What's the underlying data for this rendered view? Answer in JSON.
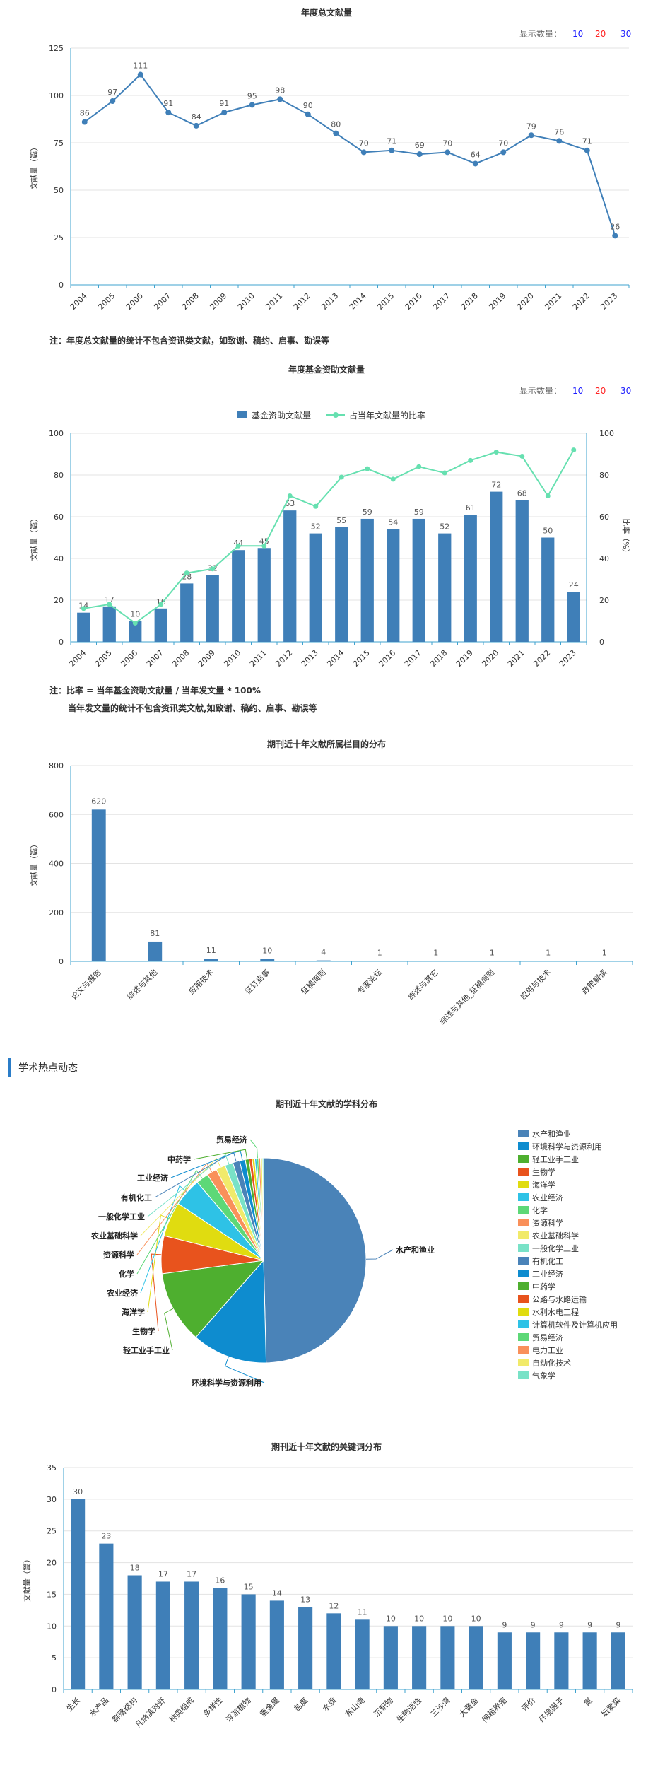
{
  "chart_data": [
    {
      "type": "line",
      "title": "年度总文献量",
      "display_count": {
        "label": "显示数量：",
        "options": [
          "10",
          "20",
          "30"
        ]
      },
      "ylabel": "文献量（篇）",
      "ylim": [
        0,
        125
      ],
      "yticks": [
        0,
        25,
        50,
        75,
        100,
        125
      ],
      "categories": [
        "2004",
        "2005",
        "2006",
        "2007",
        "2008",
        "2009",
        "2010",
        "2011",
        "2012",
        "2013",
        "2014",
        "2015",
        "2016",
        "2017",
        "2018",
        "2019",
        "2020",
        "2021",
        "2022",
        "2023"
      ],
      "values": [
        86,
        97,
        111,
        91,
        84,
        91,
        95,
        98,
        90,
        80,
        70,
        71,
        69,
        70,
        64,
        70,
        79,
        76,
        71,
        26
      ],
      "note": "注：年度总文献量的统计不包含资讯类文献，如致谢、稿约、启事、勘误等",
      "color": "#3f7fb8"
    },
    {
      "type": "bar",
      "title": "年度基金资助文献量",
      "display_count": {
        "label": "显示数量：",
        "options": [
          "10",
          "20",
          "30"
        ]
      },
      "ylabel": "文献量（篇）",
      "y2label": "比率（%）",
      "ylim": [
        0,
        100
      ],
      "yticks": [
        0,
        20,
        40,
        60,
        80,
        100
      ],
      "y2ticks": [
        0,
        20,
        40,
        60,
        80,
        100
      ],
      "legend": [
        "基金资助文献量",
        "占当年文献量的比率"
      ],
      "categories": [
        "2004",
        "2005",
        "2006",
        "2007",
        "2008",
        "2009",
        "2010",
        "2011",
        "2012",
        "2013",
        "2014",
        "2015",
        "2016",
        "2017",
        "2018",
        "2019",
        "2020",
        "2021",
        "2022",
        "2023"
      ],
      "series": [
        {
          "name": "基金资助文献量",
          "type": "bar",
          "values": [
            14,
            17,
            10,
            16,
            28,
            32,
            44,
            45,
            63,
            52,
            55,
            59,
            54,
            59,
            52,
            61,
            72,
            68,
            50,
            24
          ]
        },
        {
          "name": "占当年文献量的比率",
          "type": "line",
          "values": [
            16,
            18,
            9,
            18,
            33,
            35,
            46,
            46,
            70,
            65,
            79,
            83,
            78,
            84,
            81,
            87,
            91,
            89,
            70,
            92
          ]
        }
      ],
      "note_lines": [
        "注：比率 = 当年基金资助文献量 / 当年发文量 * 100%",
        "当年发文量的统计不包含资讯类文献,如致谢、稿约、启事、勘误等"
      ],
      "colors": {
        "bar": "#3f7fb8",
        "line": "#66e0b0"
      }
    },
    {
      "type": "bar",
      "title": "期刊近十年文献所属栏目的分布",
      "ylabel": "文献量（篇）",
      "ylim": [
        0,
        800
      ],
      "yticks": [
        0,
        200,
        400,
        600,
        800
      ],
      "categories": [
        "论文与报告",
        "综述与其他",
        "应用技术",
        "征订启事",
        "征稿简则",
        "专家论坛",
        "综述与其它",
        "综述与其他_征稿简则",
        "应用与技术",
        "政策解读"
      ],
      "values": [
        620,
        81,
        11,
        10,
        4,
        1,
        1,
        1,
        1,
        1
      ],
      "color": "#3f7fb8"
    },
    {
      "type": "pie",
      "title": "期刊近十年文献的学科分布",
      "labels": [
        "水产和渔业",
        "环境科学与资源利用",
        "轻工业手工业",
        "生物学",
        "海洋学",
        "农业经济",
        "化学",
        "资源科学",
        "农业基础科学",
        "一般化学工业",
        "有机化工",
        "工业经济",
        "中药学",
        "公路与水路运输",
        "水利水电工程",
        "计算机软件及计算机应用",
        "贸易经济",
        "电力工业",
        "自动化技术",
        "气象学"
      ],
      "values": [
        50.0,
        12.0,
        11.5,
        6.0,
        5.5,
        4.5,
        2.0,
        1.6,
        1.5,
        1.3,
        1.1,
        0.9,
        0.6,
        0.5,
        0.4,
        0.3,
        0.3,
        0.3,
        0.3,
        0.2
      ],
      "outer_labels": [
        "水产和渔业",
        "环境科学与资源利用",
        "轻工业手工业",
        "生物学",
        "海洋学",
        "农业经济",
        "化学",
        "资源科学",
        "农业基础科学",
        "一般化学工业",
        "有机化工",
        "工业经济",
        "中药学",
        "贸易经济"
      ],
      "colors": [
        "#4a83b8",
        "#0e8ccf",
        "#4eaf2f",
        "#e8531d",
        "#e0dc10",
        "#2ec2e6",
        "#5dd877",
        "#f9905a",
        "#f1ea6a",
        "#79e2c7",
        "#4a83b8",
        "#0e8ccf",
        "#4eaf2f",
        "#e8531d",
        "#e0dc10",
        "#2ec2e6",
        "#5dd877",
        "#f9905a",
        "#f1ea6a",
        "#79e2c7"
      ]
    },
    {
      "type": "bar",
      "title": "期刊近十年文献的关键词分布",
      "ylabel": "文献量（篇）",
      "ylim": [
        0,
        35
      ],
      "yticks": [
        0,
        5,
        10,
        15,
        20,
        25,
        30,
        35
      ],
      "categories": [
        "生长",
        "水产品",
        "群落结构",
        "凡纳滨对虾",
        "种类组成",
        "多样性",
        "浮游植物",
        "重金属",
        "盐度",
        "水质",
        "东山湾",
        "沉积物",
        "生物活性",
        "三沙湾",
        "大黄鱼",
        "网箱养殖",
        "评价",
        "环境因子",
        "氮",
        "坛紫菜"
      ],
      "values": [
        30,
        23,
        18,
        17,
        17,
        16,
        15,
        14,
        13,
        12,
        11,
        10,
        10,
        10,
        10,
        9,
        9,
        9,
        9,
        9
      ],
      "color": "#3f7fb8"
    }
  ],
  "section": {
    "hot_title": "学术热点动态"
  }
}
